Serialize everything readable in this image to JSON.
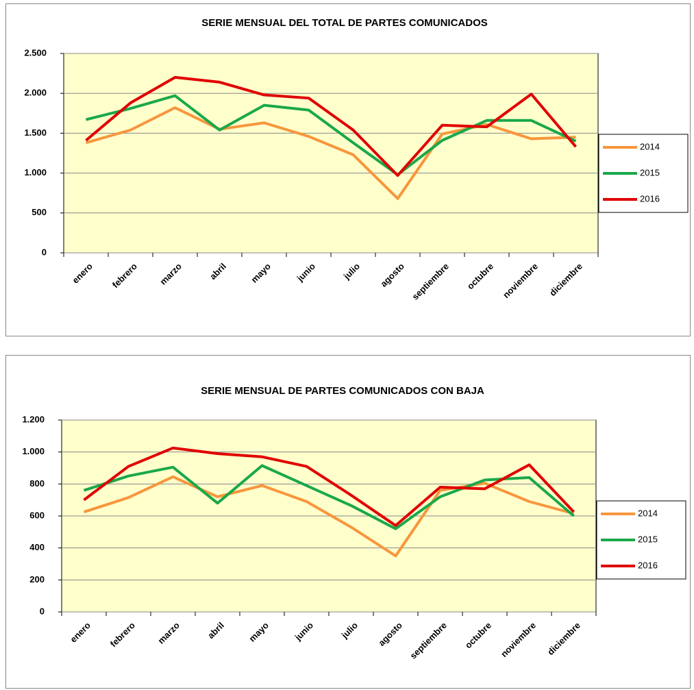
{
  "chart_data": [
    {
      "type": "line",
      "title": "SERIE MENSUAL DEL TOTAL DE PARTES COMUNICADOS",
      "categories": [
        "enero",
        "febrero",
        "marzo",
        "abril",
        "mayo",
        "junio",
        "julio",
        "agosto",
        "septiembre",
        "octubre",
        "noviembre",
        "diciembre"
      ],
      "series": [
        {
          "name": "2014",
          "color": "#f7963c",
          "values": [
            1380,
            1540,
            1820,
            1550,
            1630,
            1460,
            1230,
            680,
            1490,
            1610,
            1430,
            1450
          ]
        },
        {
          "name": "2015",
          "color": "#1aa84a",
          "values": [
            1670,
            1810,
            1970,
            1540,
            1850,
            1790,
            1380,
            980,
            1410,
            1660,
            1660,
            1400
          ]
        },
        {
          "name": "2016",
          "color": "#e00000",
          "values": [
            1410,
            1880,
            2200,
            2140,
            1980,
            1940,
            1540,
            970,
            1600,
            1580,
            1990,
            1330
          ]
        }
      ],
      "ylim": [
        0,
        2500
      ],
      "yticks": [
        0,
        500,
        {
          "value": 1000,
          "label": "1.000"
        },
        {
          "value": 1500,
          "label": "1.500"
        },
        {
          "value": 2000,
          "label": "2.000"
        },
        {
          "value": 2500,
          "label": "2.500"
        }
      ],
      "grid": true,
      "legend": "right"
    },
    {
      "type": "line",
      "title": "SERIE MENSUAL DE PARTES COMUNICADOS  CON BAJA",
      "categories": [
        "enero",
        "febrero",
        "marzo",
        "abril",
        "mayo",
        "junio",
        "julio",
        "agosto",
        "septiembre",
        "octubre",
        "noviembre",
        "diciembre"
      ],
      "series": [
        {
          "name": "2014",
          "color": "#f7963c",
          "values": [
            625,
            715,
            845,
            720,
            790,
            690,
            530,
            350,
            760,
            805,
            690,
            615
          ]
        },
        {
          "name": "2015",
          "color": "#1aa84a",
          "values": [
            760,
            850,
            905,
            680,
            915,
            790,
            665,
            520,
            720,
            825,
            840,
            600
          ]
        },
        {
          "name": "2016",
          "color": "#e00000",
          "values": [
            700,
            910,
            1025,
            990,
            970,
            910,
            730,
            540,
            780,
            770,
            920,
            625
          ]
        }
      ],
      "ylim": [
        0,
        1200
      ],
      "yticks": [
        0,
        200,
        400,
        600,
        800,
        {
          "value": 1000,
          "label": "1.000"
        },
        {
          "value": 1200,
          "label": "1.200"
        }
      ],
      "grid": true,
      "legend": "right"
    }
  ]
}
